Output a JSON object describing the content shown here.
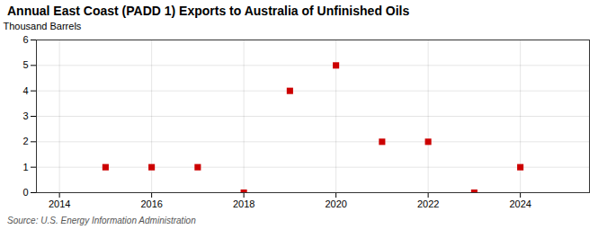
{
  "chart_data": {
    "type": "scatter",
    "title": "Annual East Coast (PADD 1) Exports to Australia of Unfinished Oils",
    "ylabel": "Thousand Barrels",
    "source": "Source: U.S. Energy Information Administration",
    "x": [
      2015,
      2016,
      2017,
      2018,
      2019,
      2020,
      2021,
      2022,
      2023,
      2024
    ],
    "values": [
      1,
      1,
      1,
      0,
      4,
      5,
      2,
      2,
      0,
      1
    ],
    "color": "#cc0000",
    "marker": "square",
    "xlim": [
      2013.5,
      2025.5
    ],
    "xticks": [
      2014,
      2016,
      2018,
      2020,
      2022,
      2024
    ],
    "ylim": [
      0,
      6
    ],
    "yticks": [
      0,
      1,
      2,
      3,
      4,
      5,
      6
    ],
    "grid": true
  }
}
